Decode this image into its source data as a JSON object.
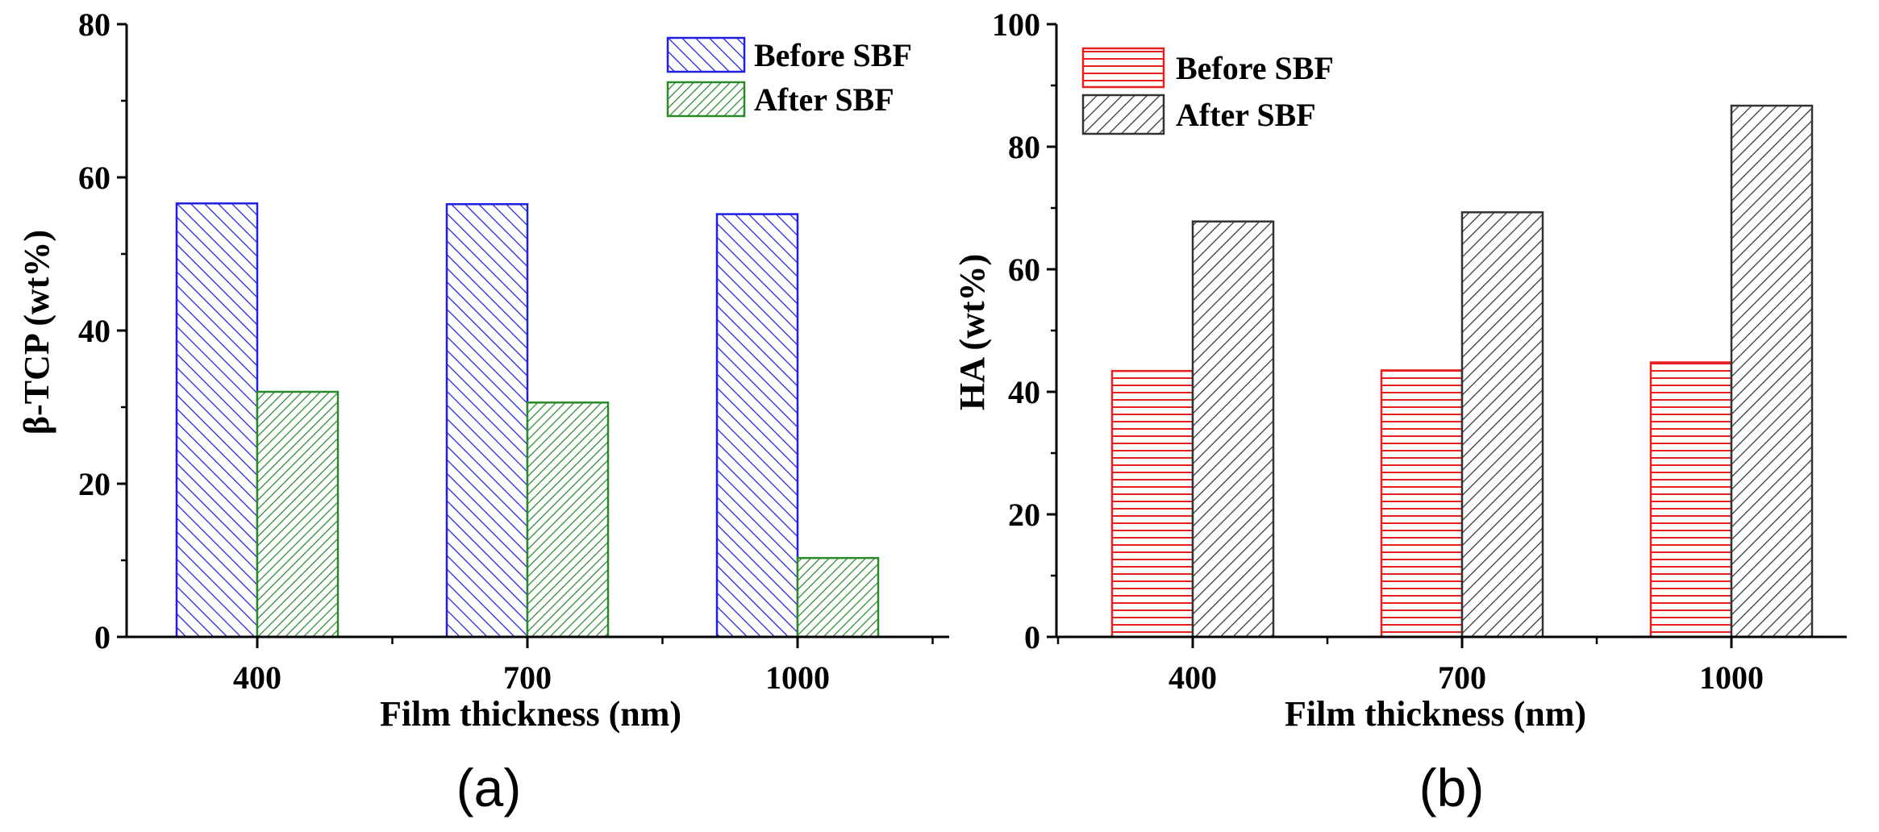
{
  "chart_data": [
    {
      "type": "bar",
      "panel_label": "(a)",
      "xlabel": "Film thickness (nm)",
      "ylabel": "β-TCP (wt%)",
      "categories": [
        "400",
        "700",
        "1000"
      ],
      "ylim": [
        0,
        80
      ],
      "yticks": [
        0,
        20,
        40,
        60,
        80
      ],
      "legend_position": "top-right",
      "series": [
        {
          "name": "Before SBF",
          "values": [
            56.6,
            56.5,
            55.2
          ],
          "color": "#1f1fe6",
          "hatch": "diagonal"
        },
        {
          "name": "After SBF",
          "values": [
            32.0,
            30.6,
            10.3
          ],
          "color": "#2a8a2a",
          "hatch": "diagonal-dense"
        }
      ]
    },
    {
      "type": "bar",
      "panel_label": "(b)",
      "xlabel": "Film thickness (nm)",
      "ylabel": "HA (wt%)",
      "categories": [
        "400",
        "700",
        "1000"
      ],
      "ylim": [
        0,
        100
      ],
      "yticks": [
        0,
        20,
        40,
        60,
        80,
        100
      ],
      "legend_position": "top-left",
      "series": [
        {
          "name": "Before SBF",
          "values": [
            43.4,
            43.5,
            44.8
          ],
          "color": "#e61f1f",
          "hatch": "horizontal"
        },
        {
          "name": "After SBF",
          "values": [
            67.8,
            69.3,
            86.7
          ],
          "color": "#333333",
          "hatch": "backslash"
        }
      ]
    }
  ]
}
